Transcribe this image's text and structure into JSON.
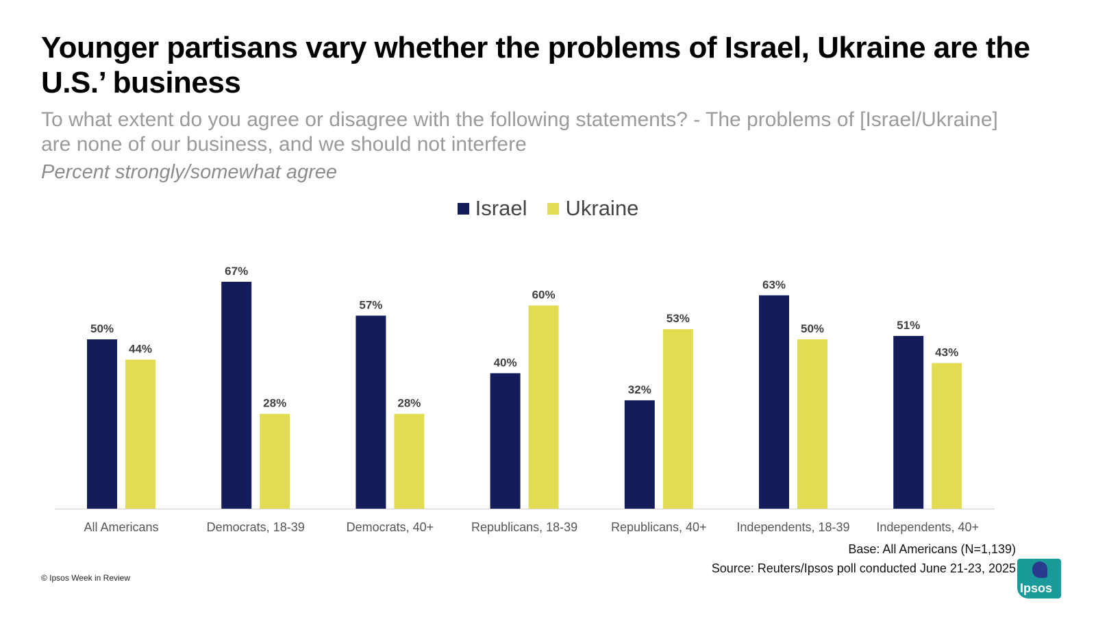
{
  "header": {
    "title": "Younger partisans vary whether the problems of Israel, Ukraine are the U.S.’ business",
    "subtitle": "To what extent do you agree or disagree with the following statements? - The problems of [Israel/Ukraine] are none of our business, and we should not interfere",
    "note": "Percent strongly/somewhat agree"
  },
  "legend": {
    "israel": "Israel",
    "ukraine": "Ukraine"
  },
  "colors": {
    "israel": "#141c5a",
    "ukraine": "#e2dc52",
    "axis": "#d9d9d9",
    "label": "#404040",
    "tick": "#555555"
  },
  "chart_data": {
    "type": "bar",
    "categories": [
      "All Americans",
      "Democrats, 18-39",
      "Democrats, 40+",
      "Republicans, 18-39",
      "Republicans, 40+",
      "Independents, 18-39",
      "Independents, 40+"
    ],
    "series": [
      {
        "name": "Israel",
        "values": [
          50,
          67,
          57,
          40,
          32,
          63,
          51
        ]
      },
      {
        "name": "Ukraine",
        "values": [
          44,
          28,
          28,
          60,
          53,
          50,
          43
        ]
      }
    ],
    "value_suffix": "%",
    "ylim": [
      0,
      100
    ],
    "grid": false,
    "legend_position": "top-center"
  },
  "footer": {
    "base": "Base: All Americans (N=1,139)",
    "source": "Source: Reuters/Ipsos poll conducted June 21-23, 2025",
    "copyright": "© Ipsos Week in Review",
    "logo_text": "Ipsos"
  }
}
